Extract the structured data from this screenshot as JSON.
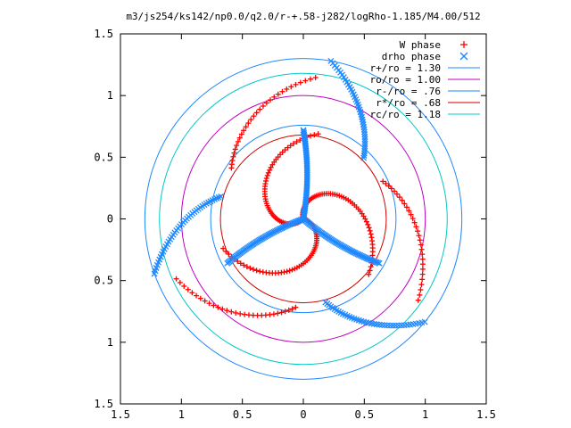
{
  "chart_data": {
    "type": "scatter",
    "title": "m3/js254/ks142/np0.0/q2.0/r-+.58-j282/logRho-1.185/M4.00/512",
    "xlim": [
      -1.5,
      1.5
    ],
    "ylim": [
      -1.5,
      1.5
    ],
    "xticks": [
      "1.5",
      "1",
      "0.5",
      "0",
      "0.5",
      "1",
      "1.5"
    ],
    "yticks": [
      "1.5",
      "1",
      "0.5",
      "0",
      "0.5",
      "1",
      "1.5"
    ],
    "grid": false,
    "legend_position": "top-right",
    "series": [
      {
        "name": "W phase",
        "marker": "plus",
        "color": "#ff0000",
        "arms": [
          {
            "r0": 0.0,
            "r1": 0.7,
            "theta0": 225,
            "theta1": 80,
            "step": 0.012
          },
          {
            "r0": 0.0,
            "r1": 0.7,
            "theta0": 345,
            "theta1": 200,
            "step": 0.012
          },
          {
            "r0": 0.0,
            "r1": 0.7,
            "theta0": 105,
            "theta1": -40,
            "step": 0.012
          },
          {
            "r0": 0.72,
            "r1": 1.15,
            "theta0": 265,
            "theta1": 205,
            "step": 0.015
          },
          {
            "r0": 0.72,
            "r1": 1.15,
            "theta0": 25,
            "theta1": -35,
            "step": 0.015
          },
          {
            "r0": 0.72,
            "r1": 1.15,
            "theta0": 145,
            "theta1": 85,
            "step": 0.015
          }
        ]
      },
      {
        "name": "drho phase",
        "marker": "cross",
        "color": "#1e88ff",
        "arms": [
          {
            "r0": 0.0,
            "r1": 0.72,
            "theta0": 80,
            "theta1": 90,
            "step": 0.012
          },
          {
            "r0": 0.0,
            "r1": 0.72,
            "theta0": -40,
            "theta1": -30,
            "step": 0.012
          },
          {
            "r0": 0.0,
            "r1": 0.72,
            "theta0": 200,
            "theta1": 210,
            "step": 0.012
          },
          {
            "r0": 0.7,
            "r1": 1.3,
            "theta0": 45,
            "theta1": 80,
            "step": 0.015
          },
          {
            "r0": 0.7,
            "r1": 1.3,
            "theta0": 165,
            "theta1": 200,
            "step": 0.015
          },
          {
            "r0": 0.7,
            "r1": 1.3,
            "theta0": -75,
            "theta1": -40,
            "step": 0.015
          }
        ]
      }
    ],
    "circles": [
      {
        "name": "r+/ro = 1.30",
        "radius": 1.3,
        "color": "#1e88ff"
      },
      {
        "name": "ro/ro = 1.00",
        "radius": 1.0,
        "color": "#c000c0"
      },
      {
        "name": "r-/ro = .76",
        "radius": 0.76,
        "color": "#1e88ff"
      },
      {
        "name": "r*/ro = .68",
        "radius": 0.68,
        "color": "#cc0000"
      },
      {
        "name": "rc/ro = 1.18",
        "radius": 1.18,
        "color": "#00c8c8"
      }
    ]
  }
}
